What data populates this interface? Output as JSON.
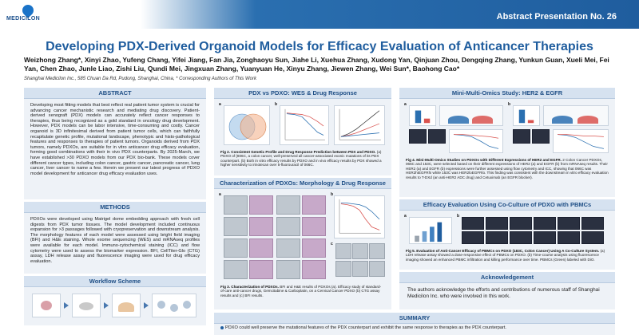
{
  "header": {
    "logo_text": "MEDICILON",
    "abstract_number": "Abstract Presentation No. 26",
    "title": "Developing PDX-Derived Organoid Models for Efficacy Evaluation of Anticancer Therapies",
    "authors": "Weizhong Zhang*, Xinyi Zhao, Yufeng Chang, Yifei Jiang, Fan Jia, Zonghaoyu Sun, Jiahe Li, Xuehua Zhang, Xudong Yan, Qinjuan Zhou, Dengqing Zhang, Yunkun Guan, Xueli Mei, Fei Yan, Chen Zhao, Junle Liao, Zishi Liu, Qundi Mei, Jingxuan Zhang, Yuanyuan He, Xinyu Zhang, Jiewen Zhang, Wei Sun*, Baohong Cao*",
    "affiliation": "Shanghai Medicilon Inc., 585 Chuan Da Rd, Pudong, Shanghai, China, * Corresponding Authors of This Work"
  },
  "abstract": {
    "heading": "ABSTRACT",
    "text": "Developing most fitting models that best reflect real patient tumor system is crucial for advancing cancer mechanistic research and mediating drug discovery. Patient-derived xenograft (PDX) models can accurately reflect cancer responses to therapies, thus being recognized as a gold standard in oncology drug development. However, PDX models can be labor intensive, time-consuming and costly. Cancer organoid is 3D infinitesimal derived from patient tumor cells, which can faithfully recapitulate genetic profile, mutational landscape, phenotypic and histo-pathological features and responses to therapies of patient tumors. Organoids derived from PDX tumors, namely PDXOs, are suitable for in vitro anticancer drug efficacy evaluation, forming good combinations with their in vivo PDX counterparts. By 2025-March, we have established >30 PDXO models from our PDX bio-bank. These models cover different cancer types, including colon cancer, gastric cancer, pancreatic cancer, lung cancer, liver cancer to name a few. Herein we present our latest progress of PDXO model development for anticancer drug efficacy evaluation uses."
  },
  "methods": {
    "heading": "METHODS",
    "text": "PDXOs were developed using Matrigel dome embedding approach with fresh cell digests from PDX tumor tissues. The model development included continuous expansion for >3 passages followed with cryopreservation and downstream analysis. The morphology features of each model were assessed using bright field imaging (BFI) and H&E staining. Whole exome sequencing (WES) and mRNAseq profiles were available for each model. Immuno-cytochemical staining (ICC) and flow cytometry were used to assess the biomarker expression. BFI, CellTiter-Glo (CTG) assay, LDH release assay and fluorescence imaging were used for drug efficacy evaluation."
  },
  "workflow": {
    "heading": "Workflow Scheme"
  },
  "wes": {
    "heading": "PDX vs PDXO: WES & Drug Response",
    "caption_bold": "Fig 2. Consistent Genetic Profile and Drug Response Prediction between PDX and PDXO.",
    "caption": "(a) PDXO of (806C, a colon cancer, well-preserved all cancer-associated exonic mutations of its PDX counterpart. (b) Both in vitro efficacy results by PDXO and in vivo efficacy results by PDX showed a higher sensitivity to irinotecan over 5-fluorouracil of 066C.",
    "panel_a": "a",
    "panel_b": "b"
  },
  "morph": {
    "heading": "Characterization of PDXOs: Morphology & Drug Response",
    "caption_bold": "Fig 3. Characterization of PDXOs.",
    "caption": "BFI and H&E results of PDXOs (a). Efficacy study of standard-of-care anti-cancer drugs, Gemcitabine & Carboplatin, on a Cervical Cancer PDXO (b) CTG assay results and (c) BFI results.",
    "panel_a": "a",
    "panel_b": "b",
    "panel_c": "c"
  },
  "omics": {
    "heading": "Mini-Multi-Omics Study: HER2 & EGFR",
    "caption_bold": "Fig 4. Mini-Multi-Omics Studies on PDXOs with Different Expressions of HER2 and EGFR.",
    "caption": "2 Colon Cancer PDXOs, 066C and 153C, were selected based on their different expressions of HER2 (a) and EGFR (b) from mRNAseq results. Their HER2 (a) and EGFR (b) expressions were further assessed using flow cytometry and ICC, showing that 066C was HER2hiEGFRhi while 153C was HER2loEGFRlo. This finding was consistent with the downstream in vitro efficacy evaluation results to T-DXd (an anti-HER2 ADC drug) and Cetuximab (an EGFR blocker).",
    "panel_a": "a",
    "panel_b": "b"
  },
  "coculture": {
    "heading": "Efficacy Evaluation Using Co-Culture of PDXO with PBMCs",
    "caption_bold": "Fig 5. Evaluation of Anti-Cancer Efficacy of PBMCs on PDXO (183C, Colon Cancer) Using A Co-Culture System.",
    "caption": "(a) LDH release assay showed a dose-responsive effect of PBMCs on PDXO. (b) Time-course analysis using fluorescence imaging showed an enhanced PBMC infiltration and killing performance over time. PBMCs (Green) labeled with DiO.",
    "panel_a": "a",
    "panel_b": "b"
  },
  "acknowledgement": {
    "heading": "Acknowledgement",
    "text": "The authors acknowledge the efforts and contributions of numerous staff of Shanghai Medicilon Inc. who were involved in this work."
  },
  "summary": {
    "heading": "SUMMARY",
    "text": "PDXO could well preserve the mutational features of the PDX counterpart and exhibit the same response to therapies as the PDX counterpart."
  },
  "colors": {
    "brand_blue": "#1f5d9e",
    "panel_bg": "#eef2f7",
    "panel_header": "#d6e2f0"
  }
}
